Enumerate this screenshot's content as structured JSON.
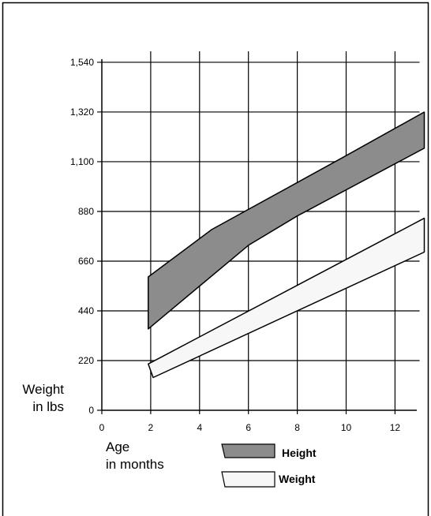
{
  "chart_data": {
    "type": "area",
    "title": "",
    "ylabel_line1": "Weight",
    "ylabel_line2": "in lbs",
    "xlabel_line1": "Age",
    "xlabel_line2": "in months",
    "xlim": [
      0,
      13.2
    ],
    "ylim": [
      0,
      1650
    ],
    "grid": true,
    "legend_position": "bottom-center",
    "x_ticks": [
      0,
      2,
      4,
      6,
      8,
      10,
      12
    ],
    "x_tick_labels": [
      "0",
      "2",
      "4",
      "6",
      "8",
      "10",
      "12"
    ],
    "y_ticks": [
      0,
      220,
      440,
      660,
      880,
      1100,
      1320,
      1540
    ],
    "y_tick_labels": [
      "0",
      "220",
      "440",
      "660",
      "880",
      "1,100",
      "1,320",
      "1,540"
    ],
    "series": [
      {
        "name": "Height",
        "color": "#8c8c8c",
        "upper": [
          [
            1.9,
            590
          ],
          [
            4.5,
            800
          ],
          [
            9.8,
            1115
          ],
          [
            13.2,
            1320
          ]
        ],
        "lower": [
          [
            1.9,
            360
          ],
          [
            6,
            730
          ],
          [
            8,
            860
          ],
          [
            13.2,
            1160
          ]
        ]
      },
      {
        "name": "Weight",
        "color": "#f7f7f7",
        "upper": [
          [
            1.9,
            205
          ],
          [
            13.2,
            850
          ]
        ],
        "lower": [
          [
            2.1,
            145
          ],
          [
            13.2,
            700
          ]
        ]
      }
    ]
  }
}
